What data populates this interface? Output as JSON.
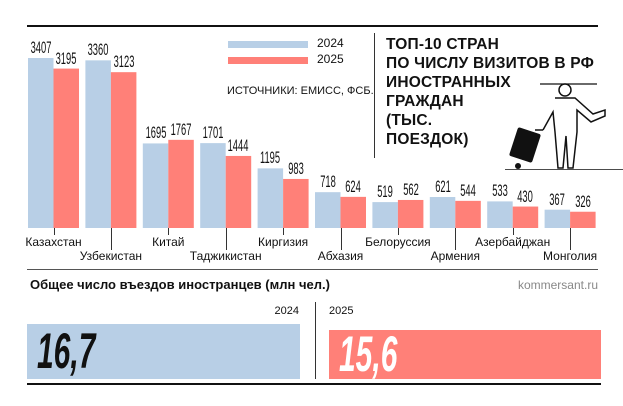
{
  "chart_data": {
    "type": "bar",
    "title": "ТОП-10 СТРАН ПО ЧИСЛУ ВИЗИТОВ В РФ ИНОСТРАННЫХ ГРАЖДАН (ТЫС. ПОЕЗДОК)",
    "title_lines": [
      "ТОП-10 СТРАН",
      "ПО ЧИСЛУ ВИЗИТОВ В РФ",
      "ИНОСТРАННЫХ",
      "ГРАЖДАН",
      "(ТЫС.",
      "ПОЕЗДОК)"
    ],
    "source": "ИСТОЧНИКИ: ЕМИСС, ФСБ.",
    "categories": [
      "Казахстан",
      "Узбекистан",
      "Китай",
      "Таджикистан",
      "Киргизия",
      "Абхазия",
      "Белоруссия",
      "Армения",
      "Азербайджан",
      "Монголия"
    ],
    "series": [
      {
        "name": "2024",
        "color": "#b8cfe6",
        "values": [
          3407,
          3360,
          1695,
          1701,
          1195,
          718,
          519,
          621,
          533,
          367
        ]
      },
      {
        "name": "2025",
        "color": "#ff8078",
        "values": [
          3195,
          3123,
          1767,
          1444,
          983,
          624,
          562,
          544,
          430,
          326
        ]
      }
    ],
    "ylim": [
      0,
      3500
    ],
    "legend_position": "top-center",
    "grid": false
  },
  "totals": {
    "title": "Общее число въездов иностранцев (млн чел.)",
    "credit": "kommersant.ru",
    "items": [
      {
        "year": "2024",
        "value": "16,7",
        "color": "#b8cfe6"
      },
      {
        "year": "2025",
        "value": "15,6",
        "color": "#ff8078"
      }
    ]
  }
}
